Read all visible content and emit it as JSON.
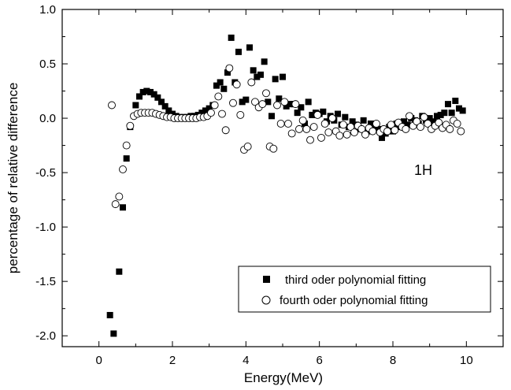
{
  "chart_data": {
    "type": "scatter",
    "title": "",
    "xlabel": "Energy(MeV)",
    "ylabel": "percentage of relative difference",
    "xlim": [
      -1,
      11
    ],
    "ylim": [
      -2.1,
      1.0
    ],
    "xticks": [
      0,
      2,
      4,
      6,
      8,
      10
    ],
    "yticks": [
      1.0,
      0.5,
      0.0,
      -0.5,
      -1.0,
      -1.5,
      -2.0
    ],
    "ytick_labels": [
      "1.0",
      "0.5",
      "0.0",
      "-0.5",
      "-1.0",
      "-1.5",
      "-2.0"
    ],
    "grid": false,
    "legend_position": "bottom-right",
    "annotation": "1H",
    "series": [
      {
        "name": "third oder polynomial fitting",
        "marker": "filled-square",
        "x": [
          0.3,
          0.4,
          0.55,
          0.65,
          0.75,
          0.85,
          1.0,
          1.1,
          1.2,
          1.3,
          1.4,
          1.5,
          1.6,
          1.7,
          1.8,
          1.9,
          2.0,
          2.1,
          2.2,
          2.3,
          2.4,
          2.5,
          2.6,
          2.7,
          2.8,
          2.9,
          3.0,
          3.1,
          3.2,
          3.3,
          3.4,
          3.5,
          3.6,
          3.7,
          3.8,
          3.9,
          4.0,
          4.1,
          4.2,
          4.3,
          4.4,
          4.5,
          4.6,
          4.7,
          4.8,
          4.9,
          5.0,
          5.1,
          5.2,
          5.3,
          5.4,
          5.5,
          5.6,
          5.7,
          5.8,
          5.9,
          6.0,
          6.1,
          6.2,
          6.3,
          6.4,
          6.5,
          6.6,
          6.7,
          6.8,
          6.9,
          7.0,
          7.1,
          7.2,
          7.3,
          7.4,
          7.5,
          7.6,
          7.7,
          7.8,
          7.9,
          8.0,
          8.1,
          8.2,
          8.3,
          8.4,
          8.5,
          8.6,
          8.7,
          8.8,
          8.9,
          9.0,
          9.1,
          9.2,
          9.3,
          9.4,
          9.5,
          9.6,
          9.7,
          9.8,
          9.9
        ],
        "y": [
          -1.81,
          -1.98,
          -1.41,
          -0.82,
          -0.37,
          -0.08,
          0.12,
          0.2,
          0.24,
          0.25,
          0.24,
          0.22,
          0.19,
          0.15,
          0.11,
          0.07,
          0.04,
          0.02,
          0.01,
          0.01,
          0.01,
          0.02,
          0.02,
          0.03,
          0.05,
          0.07,
          0.09,
          0.12,
          0.3,
          0.33,
          0.27,
          0.42,
          0.74,
          0.33,
          0.61,
          0.15,
          0.17,
          0.65,
          0.44,
          0.38,
          0.4,
          0.52,
          0.15,
          0.02,
          0.36,
          0.18,
          0.38,
          0.11,
          0.13,
          0.13,
          0.05,
          0.1,
          -0.05,
          0.15,
          0.03,
          0.05,
          0.04,
          0.06,
          -0.03,
          0.02,
          -0.02,
          0.04,
          -0.06,
          0.01,
          -0.08,
          -0.03,
          -0.06,
          -0.1,
          -0.02,
          -0.12,
          -0.05,
          -0.07,
          -0.1,
          -0.18,
          -0.14,
          -0.08,
          -0.12,
          -0.05,
          -0.08,
          -0.03,
          -0.06,
          0.0,
          -0.02,
          -0.05,
          0.02,
          -0.02,
          0.0,
          -0.03,
          0.02,
          0.03,
          0.05,
          0.13,
          0.05,
          0.16,
          0.09,
          0.07
        ]
      },
      {
        "name": "fourth oder polynomial fitting",
        "marker": "open-circle",
        "x": [
          0.35,
          0.45,
          0.55,
          0.65,
          0.75,
          0.85,
          0.95,
          1.05,
          1.15,
          1.25,
          1.35,
          1.45,
          1.55,
          1.65,
          1.75,
          1.85,
          1.95,
          2.05,
          2.15,
          2.25,
          2.35,
          2.45,
          2.55,
          2.65,
          2.75,
          2.85,
          2.95,
          3.05,
          3.15,
          3.25,
          3.35,
          3.45,
          3.55,
          3.65,
          3.75,
          3.85,
          3.95,
          4.05,
          4.15,
          4.25,
          4.35,
          4.45,
          4.55,
          4.65,
          4.75,
          4.85,
          4.95,
          5.05,
          5.15,
          5.25,
          5.35,
          5.45,
          5.55,
          5.65,
          5.75,
          5.85,
          5.95,
          6.05,
          6.15,
          6.25,
          6.35,
          6.45,
          6.55,
          6.65,
          6.75,
          6.85,
          6.95,
          7.05,
          7.15,
          7.25,
          7.35,
          7.45,
          7.55,
          7.65,
          7.75,
          7.85,
          7.95,
          8.05,
          8.15,
          8.25,
          8.35,
          8.45,
          8.55,
          8.65,
          8.75,
          8.85,
          8.95,
          9.05,
          9.15,
          9.25,
          9.35,
          9.45,
          9.55,
          9.65,
          9.75,
          9.85
        ],
        "y": [
          0.12,
          -0.79,
          -0.72,
          -0.47,
          -0.25,
          -0.07,
          0.02,
          0.04,
          0.05,
          0.05,
          0.05,
          0.05,
          0.04,
          0.03,
          0.02,
          0.01,
          0.01,
          0.0,
          0.0,
          0.0,
          0.0,
          0.0,
          0.0,
          0.0,
          0.01,
          0.01,
          0.02,
          0.05,
          0.12,
          0.2,
          0.04,
          -0.11,
          0.46,
          0.14,
          0.31,
          0.03,
          -0.29,
          -0.26,
          0.33,
          0.15,
          0.1,
          0.13,
          0.23,
          -0.26,
          -0.28,
          0.12,
          -0.05,
          0.15,
          -0.05,
          -0.14,
          0.13,
          -0.1,
          -0.02,
          -0.1,
          -0.2,
          -0.08,
          0.03,
          -0.18,
          -0.05,
          -0.13,
          0.0,
          -0.12,
          -0.16,
          -0.06,
          -0.15,
          -0.08,
          -0.13,
          -0.07,
          -0.1,
          -0.15,
          -0.09,
          -0.12,
          -0.05,
          -0.13,
          -0.1,
          -0.12,
          -0.06,
          -0.11,
          -0.04,
          -0.08,
          -0.1,
          0.02,
          -0.07,
          -0.03,
          -0.08,
          0.01,
          -0.05,
          -0.1,
          -0.07,
          -0.04,
          -0.09,
          -0.06,
          -0.1,
          -0.02,
          -0.05,
          -0.12
        ]
      }
    ]
  }
}
